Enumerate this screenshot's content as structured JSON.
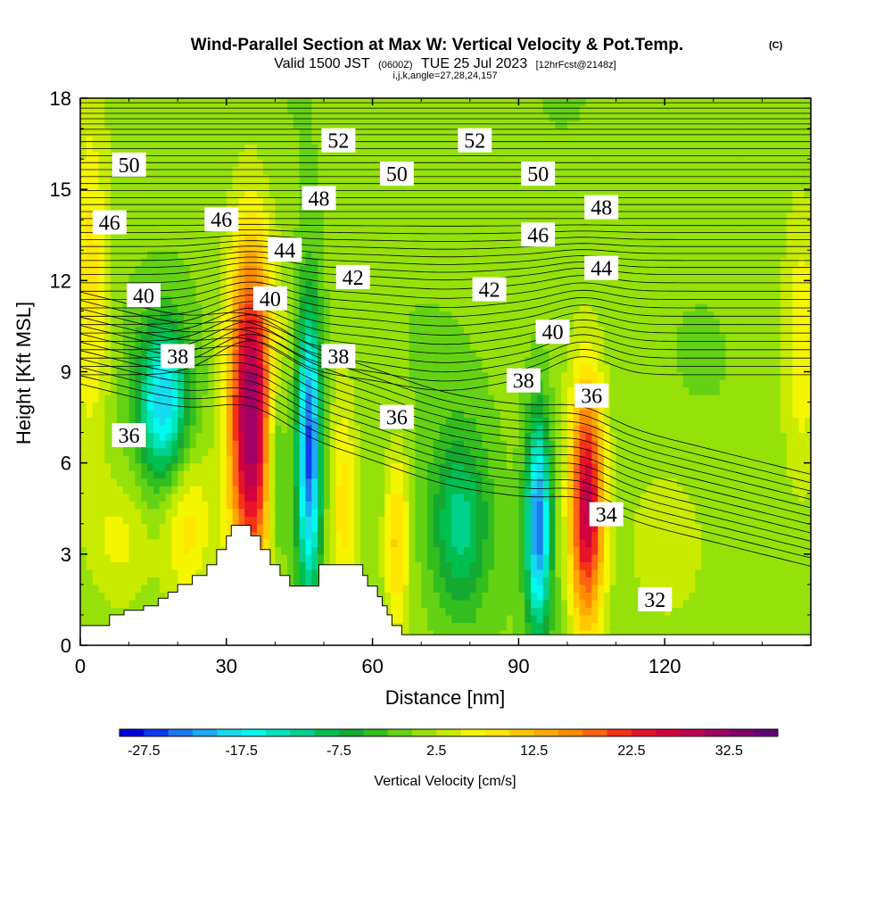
{
  "chart_data": {
    "type": "heatmap",
    "title": "Wind-Parallel Section at Max W: Vertical Velocity & Pot.Temp.",
    "copyright": "(C)",
    "subtitle_parts": {
      "valid": "Valid 1500 JST",
      "zulu": "(0600Z)",
      "date": "TUE 25 Jul 2023",
      "fcst": "[12hrFcst@2148z]"
    },
    "grid_info": "i,j,k,angle=27,28,24,157",
    "xlabel": "Distance [nm]",
    "ylabel": "Height [Kft MSL]",
    "xlim": [
      0,
      150
    ],
    "ylim": [
      0,
      18
    ],
    "x_ticks": [
      0,
      30,
      60,
      90,
      120
    ],
    "y_ticks": [
      0,
      3,
      6,
      9,
      12,
      15,
      18
    ],
    "colorbar": {
      "label": "Vertical Velocity [cm/s]",
      "tick_values": [
        -27.5,
        -17.5,
        -7.5,
        2.5,
        12.5,
        22.5,
        32.5
      ],
      "tick_labels": [
        "-27.5",
        "-17.5",
        "-7.5",
        "2.5",
        "12.5",
        "22.5",
        "32.5"
      ],
      "colors": [
        "#0000e0",
        "#0a3cf0",
        "#1e78f0",
        "#1eaaf5",
        "#14dcf0",
        "#00faf0",
        "#00e6be",
        "#00d28c",
        "#00be50",
        "#14aa32",
        "#32be1e",
        "#64d214",
        "#96e10a",
        "#c8eb00",
        "#f5f500",
        "#ffe600",
        "#ffc800",
        "#ffaa00",
        "#ff8c00",
        "#ff6414",
        "#f53214",
        "#e61428",
        "#d2003c",
        "#be0050",
        "#a00064",
        "#82006e",
        "#640078"
      ],
      "min": -30,
      "step": 2.5
    },
    "terrain": [
      [
        0,
        0.65
      ],
      [
        6,
        0.65
      ],
      [
        6,
        1.0
      ],
      [
        9,
        1.0
      ],
      [
        9,
        1.15
      ],
      [
        13,
        1.15
      ],
      [
        13,
        1.3
      ],
      [
        16,
        1.3
      ],
      [
        16,
        1.55
      ],
      [
        18,
        1.55
      ],
      [
        18,
        1.75
      ],
      [
        20,
        1.75
      ],
      [
        20,
        2.0
      ],
      [
        23,
        2.0
      ],
      [
        23,
        2.3
      ],
      [
        26,
        2.3
      ],
      [
        26,
        2.65
      ],
      [
        28,
        2.65
      ],
      [
        28,
        3.15
      ],
      [
        30,
        3.15
      ],
      [
        30,
        3.6
      ],
      [
        31,
        3.6
      ],
      [
        31,
        3.95
      ],
      [
        35,
        3.95
      ],
      [
        35,
        3.6
      ],
      [
        37,
        3.6
      ],
      [
        37,
        3.15
      ],
      [
        39,
        3.15
      ],
      [
        39,
        2.65
      ],
      [
        41,
        2.65
      ],
      [
        41,
        2.3
      ],
      [
        43,
        2.3
      ],
      [
        43,
        1.95
      ],
      [
        45,
        1.95
      ],
      [
        45,
        1.95
      ],
      [
        49,
        1.95
      ],
      [
        49,
        2.65
      ],
      [
        58,
        2.65
      ],
      [
        58,
        2.3
      ],
      [
        59,
        2.3
      ],
      [
        59,
        1.95
      ],
      [
        61,
        1.95
      ],
      [
        61,
        1.6
      ],
      [
        62,
        1.6
      ],
      [
        62,
        1.3
      ],
      [
        63,
        1.3
      ],
      [
        63,
        1.0
      ],
      [
        64,
        1.0
      ],
      [
        64,
        0.65
      ],
      [
        66,
        0.65
      ],
      [
        66,
        0.35
      ],
      [
        150,
        0.35
      ]
    ],
    "vertical_velocity_features": [
      {
        "x": 35,
        "y": 7.5,
        "value": 32,
        "width": 4.5,
        "height": 5.5
      },
      {
        "x": 47,
        "y": 6.5,
        "value": -27,
        "width": 2.5,
        "height": 4.5
      },
      {
        "x": 40,
        "y": 6.0,
        "value": -10,
        "width": 2.0,
        "height": 3.0
      },
      {
        "x": 54,
        "y": 4.5,
        "value": 8,
        "width": 3.0,
        "height": 4.0
      },
      {
        "x": 65,
        "y": 3.5,
        "value": 10,
        "width": 2.5,
        "height": 3.0
      },
      {
        "x": 78,
        "y": 4.0,
        "value": -12,
        "width": 6.0,
        "height": 3.0
      },
      {
        "x": 94,
        "y": 4.0,
        "value": -25,
        "width": 2.5,
        "height": 3.5
      },
      {
        "x": 104,
        "y": 4.5,
        "value": 28,
        "width": 3.5,
        "height": 4.0
      },
      {
        "x": 17,
        "y": 8.0,
        "value": -20,
        "width": 5.0,
        "height": 2.5
      },
      {
        "x": 22,
        "y": 4.0,
        "value": 8,
        "width": 5.0,
        "height": 2.5
      },
      {
        "x": 2,
        "y": 12.0,
        "value": 8,
        "width": 4.0,
        "height": 6.0
      },
      {
        "x": 148,
        "y": 10.0,
        "value": 6,
        "width": 4.0,
        "height": 5.0
      },
      {
        "x": 120,
        "y": 3.5,
        "value": 4,
        "width": 8.0,
        "height": 2.5
      },
      {
        "x": 8,
        "y": 3.5,
        "value": 5,
        "width": 6.0,
        "height": 2.0
      }
    ],
    "theta_contour_labels": [
      {
        "value": "52",
        "x": 53,
        "y": 16.6
      },
      {
        "value": "52",
        "x": 81,
        "y": 16.6
      },
      {
        "value": "50",
        "x": 10,
        "y": 15.8
      },
      {
        "value": "50",
        "x": 65,
        "y": 15.5
      },
      {
        "value": "50",
        "x": 94,
        "y": 15.5
      },
      {
        "value": "48",
        "x": 49,
        "y": 14.7
      },
      {
        "value": "48",
        "x": 107,
        "y": 14.4
      },
      {
        "value": "46",
        "x": 6,
        "y": 13.9
      },
      {
        "value": "46",
        "x": 29,
        "y": 14.0
      },
      {
        "value": "46",
        "x": 94,
        "y": 13.5
      },
      {
        "value": "44",
        "x": 42,
        "y": 13.0
      },
      {
        "value": "44",
        "x": 107,
        "y": 12.4
      },
      {
        "value": "42",
        "x": 56,
        "y": 12.1
      },
      {
        "value": "42",
        "x": 84,
        "y": 11.7
      },
      {
        "value": "40",
        "x": 13,
        "y": 11.5
      },
      {
        "value": "40",
        "x": 39,
        "y": 11.4
      },
      {
        "value": "40",
        "x": 97,
        "y": 10.3
      },
      {
        "value": "38",
        "x": 20,
        "y": 9.5
      },
      {
        "value": "38",
        "x": 53,
        "y": 9.5
      },
      {
        "value": "38",
        "x": 91,
        "y": 8.7
      },
      {
        "value": "36",
        "x": 10,
        "y": 6.9
      },
      {
        "value": "36",
        "x": 65,
        "y": 7.5
      },
      {
        "value": "36",
        "x": 105,
        "y": 8.2
      },
      {
        "value": "34",
        "x": 108,
        "y": 4.3
      },
      {
        "value": "32",
        "x": 118,
        "y": 1.5
      }
    ]
  }
}
